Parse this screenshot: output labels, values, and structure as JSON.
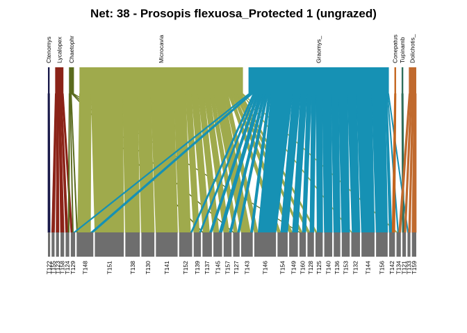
{
  "title": "Net: 38 - Prosopis flexuosa_Protected 1 (ungrazed)",
  "chart_data": {
    "type": "bipartite-network",
    "higher_nodes": [
      {
        "label": "Ctenomys",
        "width": 2,
        "color": "#1a1a4a"
      },
      {
        "label": "Lycalopex",
        "width": 10,
        "color": "#8b2318"
      },
      {
        "label": "Chaetophr",
        "width": 6,
        "color": "#5a6b1e"
      },
      {
        "label": "Microcavia",
        "width": 198,
        "color": "#9faa4c"
      },
      {
        "label": "Graomys_",
        "width": 170,
        "color": "#1691b4"
      },
      {
        "label": "Conepatus",
        "width": 2,
        "color": "#c4651e"
      },
      {
        "label": "Tupinamb",
        "width": 2,
        "color": "#2f6e5a"
      },
      {
        "label": "Dolichotis_",
        "width": 9,
        "color": "#c06a2e"
      }
    ],
    "lower_nodes": [
      {
        "label": "T122",
        "width": 3
      },
      {
        "label": "T155",
        "width": 4
      },
      {
        "label": "T123",
        "width": 4
      },
      {
        "label": "T158",
        "width": 5
      },
      {
        "label": "T124",
        "width": 5
      },
      {
        "label": "T129",
        "width": 6
      },
      {
        "label": "T148",
        "width": 23
      },
      {
        "label": "T151",
        "width": 40
      },
      {
        "label": "T138",
        "width": 20
      },
      {
        "label": "T130",
        "width": 18
      },
      {
        "label": "T141",
        "width": 30
      },
      {
        "label": "T152",
        "width": 18
      },
      {
        "label": "T139",
        "width": 10
      },
      {
        "label": "T137",
        "width": 13
      },
      {
        "label": "T145",
        "width": 12
      },
      {
        "label": "T157",
        "width": 11
      },
      {
        "label": "T127",
        "width": 9
      },
      {
        "label": "T143",
        "width": 16
      },
      {
        "label": "T146",
        "width": 30
      },
      {
        "label": "T154",
        "width": 14
      },
      {
        "label": "T149",
        "width": 12
      },
      {
        "label": "T160",
        "width": 9
      },
      {
        "label": "T128",
        "width": 9
      },
      {
        "label": "T125",
        "width": 10
      },
      {
        "label": "T140",
        "width": 11
      },
      {
        "label": "T136",
        "width": 9
      },
      {
        "label": "T153",
        "width": 11
      },
      {
        "label": "T132",
        "width": 12
      },
      {
        "label": "T144",
        "width": 18
      },
      {
        "label": "T156",
        "width": 16
      },
      {
        "label": "T142",
        "width": 8
      },
      {
        "label": "T134",
        "width": 6
      },
      {
        "label": "T121",
        "width": 5
      },
      {
        "label": "T133",
        "width": 4
      },
      {
        "label": "T159",
        "width": 6
      }
    ],
    "lower_color": "#6e6e6e",
    "links": [
      {
        "from": "Ctenomys",
        "to": "T122",
        "weight": 2
      },
      {
        "from": "Lycalopex",
        "to": "T155",
        "weight": 2
      },
      {
        "from": "Lycalopex",
        "to": "T123",
        "weight": 2
      },
      {
        "from": "Lycalopex",
        "to": "T158",
        "weight": 2
      },
      {
        "from": "Lycalopex",
        "to": "T124",
        "weight": 2
      },
      {
        "from": "Lycalopex",
        "to": "T129",
        "weight": 2
      },
      {
        "from": "Chaetophr",
        "to": "T124",
        "weight": 1
      },
      {
        "from": "Chaetophr",
        "to": "T148",
        "weight": 1
      },
      {
        "from": "Chaetophr",
        "to": "T137",
        "weight": 1
      },
      {
        "from": "Chaetophr",
        "to": "T127",
        "weight": 1
      },
      {
        "from": "Chaetophr",
        "to": "T160",
        "weight": 1
      },
      {
        "from": "Chaetophr",
        "to": "T129",
        "weight": 1
      },
      {
        "from": "Microcavia",
        "to": "T148",
        "weight": 14
      },
      {
        "from": "Microcavia",
        "to": "T151",
        "weight": 38
      },
      {
        "from": "Microcavia",
        "to": "T138",
        "weight": 18
      },
      {
        "from": "Microcavia",
        "to": "T130",
        "weight": 16
      },
      {
        "from": "Microcavia",
        "to": "T141",
        "weight": 28
      },
      {
        "from": "Microcavia",
        "to": "T152",
        "weight": 14
      },
      {
        "from": "Microcavia",
        "to": "T139",
        "weight": 7
      },
      {
        "from": "Microcavia",
        "to": "T137",
        "weight": 8
      },
      {
        "from": "Microcavia",
        "to": "T145",
        "weight": 7
      },
      {
        "from": "Microcavia",
        "to": "T157",
        "weight": 7
      },
      {
        "from": "Microcavia",
        "to": "T127",
        "weight": 5
      },
      {
        "from": "Microcavia",
        "to": "T143",
        "weight": 12
      },
      {
        "from": "Microcavia",
        "to": "T146",
        "weight": 5
      },
      {
        "from": "Microcavia",
        "to": "T154",
        "weight": 4
      },
      {
        "from": "Microcavia",
        "to": "T149",
        "weight": 4
      },
      {
        "from": "Microcavia",
        "to": "T160",
        "weight": 3
      },
      {
        "from": "Microcavia",
        "to": "T128",
        "weight": 3
      },
      {
        "from": "Microcavia",
        "to": "T125",
        "weight": 2
      },
      {
        "from": "Microcavia",
        "to": "T132",
        "weight": 1
      },
      {
        "from": "Microcavia",
        "to": "T134",
        "weight": 1
      },
      {
        "from": "Graomys_",
        "to": "T129",
        "weight": 2
      },
      {
        "from": "Graomys_",
        "to": "T148",
        "weight": 3
      },
      {
        "from": "Graomys_",
        "to": "T152",
        "weight": 2
      },
      {
        "from": "Graomys_",
        "to": "T139",
        "weight": 2
      },
      {
        "from": "Graomys_",
        "to": "T137",
        "weight": 3
      },
      {
        "from": "Graomys_",
        "to": "T145",
        "weight": 4
      },
      {
        "from": "Graomys_",
        "to": "T157",
        "weight": 3
      },
      {
        "from": "Graomys_",
        "to": "T127",
        "weight": 3
      },
      {
        "from": "Graomys_",
        "to": "T143",
        "weight": 3
      },
      {
        "from": "Graomys_",
        "to": "T146",
        "weight": 24
      },
      {
        "from": "Graomys_",
        "to": "T154",
        "weight": 9
      },
      {
        "from": "Graomys_",
        "to": "T149",
        "weight": 7
      },
      {
        "from": "Graomys_",
        "to": "T160",
        "weight": 5
      },
      {
        "from": "Graomys_",
        "to": "T128",
        "weight": 5
      },
      {
        "from": "Graomys_",
        "to": "T125",
        "weight": 7
      },
      {
        "from": "Graomys_",
        "to": "T140",
        "weight": 10
      },
      {
        "from": "Graomys_",
        "to": "T136",
        "weight": 8
      },
      {
        "from": "Graomys_",
        "to": "T153",
        "weight": 10
      },
      {
        "from": "Graomys_",
        "to": "T132",
        "weight": 10
      },
      {
        "from": "Graomys_",
        "to": "T144",
        "weight": 17
      },
      {
        "from": "Graomys_",
        "to": "T156",
        "weight": 15
      },
      {
        "from": "Graomys_",
        "to": "T142",
        "weight": 2
      },
      {
        "from": "Graomys_",
        "to": "T134",
        "weight": 1
      },
      {
        "from": "Graomys_",
        "to": "T133",
        "weight": 1
      },
      {
        "from": "Conepatus",
        "to": "T142",
        "weight": 2
      },
      {
        "from": "Tupinamb",
        "to": "T121",
        "weight": 2
      },
      {
        "from": "Dolichotis_",
        "to": "T134",
        "weight": 2
      },
      {
        "from": "Dolichotis_",
        "to": "T121",
        "weight": 2
      },
      {
        "from": "Dolichotis_",
        "to": "T133",
        "weight": 2
      },
      {
        "from": "Dolichotis_",
        "to": "T159",
        "weight": 3
      }
    ]
  }
}
